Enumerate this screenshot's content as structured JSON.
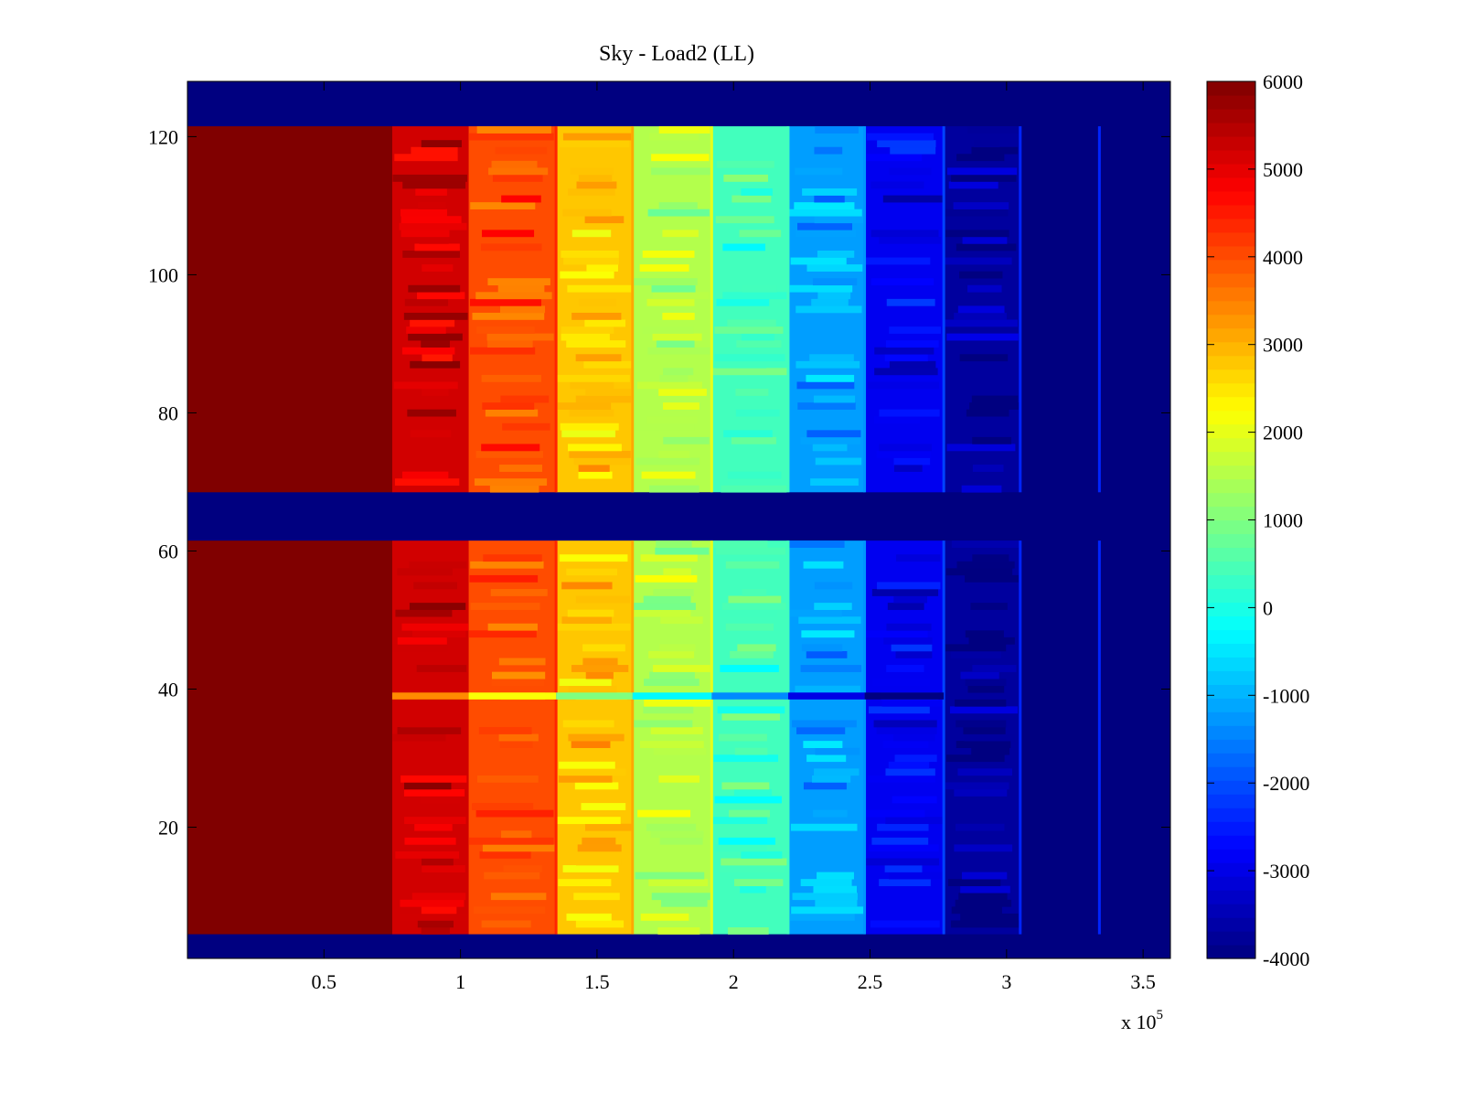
{
  "chart_data": {
    "type": "heatmap",
    "title": "Sky - Load2 (LL)",
    "xlabel": "",
    "ylabel": "",
    "x_multiplier_label": {
      "base": "x 10",
      "exponent": "5"
    },
    "xlim": [
      0,
      360000
    ],
    "ylim": [
      1,
      128
    ],
    "x_ticks": [
      {
        "value": 0.5,
        "label": "0.5"
      },
      {
        "value": 1,
        "label": "1"
      },
      {
        "value": 1.5,
        "label": "1.5"
      },
      {
        "value": 2,
        "label": "2"
      },
      {
        "value": 2.5,
        "label": "2.5"
      },
      {
        "value": 3,
        "label": "3"
      },
      {
        "value": 3.5,
        "label": "3.5"
      }
    ],
    "y_ticks": [
      {
        "value": 20,
        "label": "20"
      },
      {
        "value": 40,
        "label": "40"
      },
      {
        "value": 60,
        "label": "60"
      },
      {
        "value": 80,
        "label": "80"
      },
      {
        "value": 100,
        "label": "100"
      },
      {
        "value": 120,
        "label": "120"
      }
    ],
    "colorbar": {
      "colormap": "jet",
      "clim": [
        -4000,
        6000
      ],
      "ticks": [
        {
          "value": 6000,
          "label": "6000"
        },
        {
          "value": 5000,
          "label": "5000"
        },
        {
          "value": 4000,
          "label": "4000"
        },
        {
          "value": 3000,
          "label": "3000"
        },
        {
          "value": 2000,
          "label": "2000"
        },
        {
          "value": 1000,
          "label": "1000"
        },
        {
          "value": 0,
          "label": "0"
        },
        {
          "value": -1000,
          "label": "-1000"
        },
        {
          "value": -2000,
          "label": "-2000"
        },
        {
          "value": -3000,
          "label": "-3000"
        },
        {
          "value": -4000,
          "label": "-4000"
        }
      ]
    },
    "empty_row_bands": [
      [
        1,
        4
      ],
      [
        62,
        68
      ],
      [
        122,
        128
      ]
    ],
    "band_edges_x1e5": [
      0,
      0.75,
      1.03,
      1.35,
      1.63,
      1.92,
      2.2,
      2.48,
      2.77,
      3.05,
      3.34,
      3.6
    ],
    "band_values": [
      6000,
      5200,
      4000,
      2800,
      1500,
      400,
      -1200,
      -2900,
      -3700,
      -4000,
      -4000
    ],
    "bright_row": 39,
    "grid": false,
    "legend": "none"
  }
}
